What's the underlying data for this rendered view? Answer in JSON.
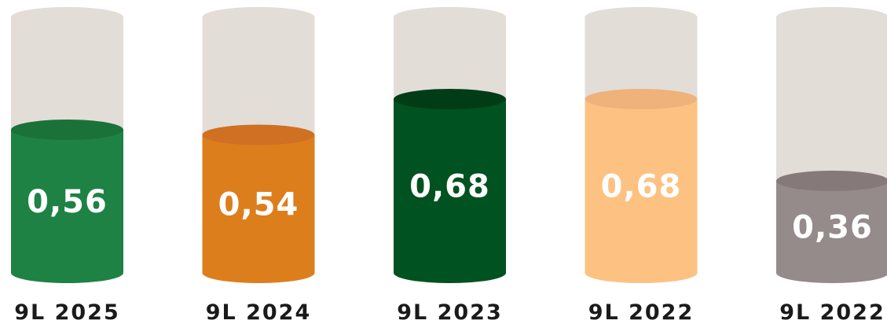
{
  "chart_data": {
    "type": "bar",
    "categories": [
      "9L 2025",
      "9L 2024",
      "9L 2023",
      "9L 2022",
      "9L 2022"
    ],
    "values": [
      0.56,
      0.54,
      0.68,
      0.68,
      0.36
    ],
    "value_labels": [
      "0,56",
      "0,54",
      "0,68",
      "0,68",
      "0,36"
    ],
    "ylim": [
      0,
      1
    ],
    "title": "",
    "xlabel": "",
    "ylabel": "",
    "grid": false,
    "legend": "none",
    "colors": {
      "track": "#e3ddd8",
      "fills": [
        "#1e8244",
        "#dd7e1d",
        "#005220",
        "#fdc282",
        "#958b8a"
      ],
      "tops": [
        "#1a7239",
        "#cf7022",
        "#003d16",
        "#eeb27a",
        "#857a79"
      ],
      "value_text": [
        "#ffffff",
        "#ffffff",
        "#ffffff",
        "#ffffff",
        "#ffffff"
      ]
    }
  }
}
